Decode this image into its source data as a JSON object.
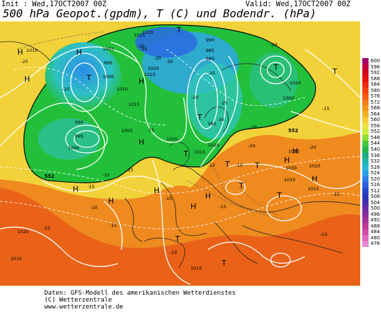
{
  "header": {
    "init": "Init : Wed,17OCT2007 00Z",
    "valid": "Valid: Wed,17OCT2007 00Z",
    "title": "500 hPa Geopot.(gpdm), T (C) und Bodendr. (hPa)"
  },
  "colors": {
    "cold_blue": "#2aa6e8",
    "teal": "#2fc7b4",
    "green": "#22c03a",
    "yellow": "#f2d23a",
    "orange": "#ef8a1e",
    "red_orange": "#ea6218",
    "contour": "#ffffff",
    "coastline": "#222222",
    "thick_contour_552": "#000000"
  },
  "scale": {
    "labels": [
      "600",
      "596",
      "592",
      "588",
      "584",
      "580",
      "576",
      "572",
      "568",
      "564",
      "560",
      "556",
      "552",
      "548",
      "544",
      "540",
      "536",
      "532",
      "528",
      "524",
      "520",
      "516",
      "512",
      "508",
      "504",
      "500",
      "496",
      "492",
      "488",
      "484",
      "480",
      "476"
    ],
    "colors": [
      "#a9006d",
      "#c2003a",
      "#d6001a",
      "#e80e0e",
      "#f02a0a",
      "#f54210",
      "#f95a14",
      "#f77a1c",
      "#f4951e",
      "#f2b02a",
      "#f4cc3a",
      "#eee24a",
      "#cdea3e",
      "#8ede2e",
      "#44c83a",
      "#24b84e",
      "#1eae7e",
      "#22b6b0",
      "#28b8d8",
      "#2c9ee8",
      "#2c7ee8",
      "#2c5ee0",
      "#2446cc",
      "#2a38b8",
      "#4630b0",
      "#6a2aa6",
      "#8a28a0",
      "#a63096",
      "#c03a98",
      "#d24aa8",
      "#de68c0",
      "#e888d4"
    ]
  },
  "map": {
    "pressure_labels": [
      "1015",
      "1020",
      "1010",
      "1005",
      "995",
      "1000",
      "990",
      "985",
      "980",
      "1020",
      "1025",
      "1015",
      "1010",
      "1005",
      "995",
      "990",
      "1000",
      "1025",
      "1030",
      "1020",
      "1015",
      "1010",
      "1020",
      "1015",
      "1010",
      "1000",
      "985",
      "1020",
      "1010",
      "1020",
      "1015"
    ],
    "temp_labels": [
      "-25",
      "-30",
      "-25",
      "-20",
      "-20",
      "-35",
      "-30",
      "-25",
      "-30",
      "-20",
      "-20",
      "-15",
      "-15",
      "-15",
      "-10",
      "-10",
      "-15",
      "-15",
      "-15",
      "-10",
      "-15",
      "-20",
      "-25",
      "-15",
      "-20",
      "-10",
      "-15",
      "-10",
      "-15"
    ],
    "highs": [
      "H",
      "H",
      "H",
      "H",
      "H",
      "H",
      "H",
      "H",
      "H",
      "H",
      "H",
      "H",
      "H"
    ],
    "lows": [
      "T",
      "T",
      "T",
      "T",
      "T",
      "T",
      "T",
      "T",
      "T",
      "T",
      "T",
      "T"
    ],
    "contour_label": "552"
  },
  "footer": {
    "line1": "Daten: GFS-Modell des amerikanischen Wetterdienstes",
    "line2": "(C) Wetterzentrale",
    "line3": "www.wetterzentrale.de"
  }
}
